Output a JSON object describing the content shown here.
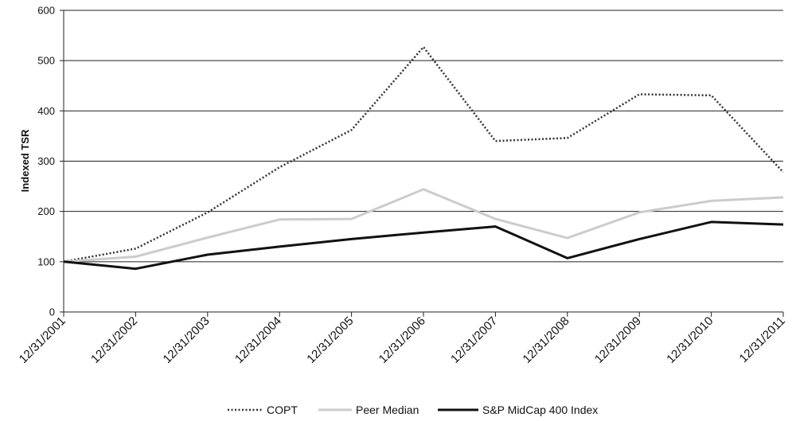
{
  "chart_data": {
    "type": "line",
    "ylabel": "Indexed TSR",
    "xlabel": "",
    "ylim": [
      0,
      600
    ],
    "yticks": [
      0,
      100,
      200,
      300,
      400,
      500,
      600
    ],
    "grid": "horizontal",
    "legend_position": "bottom",
    "categories": [
      "12/31/2001",
      "12/31/2002",
      "12/31/2003",
      "12/31/2004",
      "12/31/2005",
      "12/31/2006",
      "12/31/2007",
      "12/31/2008",
      "12/31/2009",
      "12/31/2010",
      "12/31/2011"
    ],
    "series": [
      {
        "name": "COPT",
        "style": "dotted",
        "color": "#333333",
        "values": [
          100,
          126,
          198,
          288,
          362,
          527,
          340,
          346,
          433,
          431,
          278
        ]
      },
      {
        "name": "Peer Median",
        "style": "solid",
        "color": "#cccccc",
        "values": [
          100,
          110,
          148,
          184,
          185,
          244,
          185,
          147,
          198,
          221,
          228
        ]
      },
      {
        "name": "S&P MidCap 400 Index",
        "style": "solid",
        "color": "#111111",
        "values": [
          100,
          86,
          114,
          130,
          145,
          158,
          170,
          107,
          145,
          179,
          174
        ]
      }
    ]
  }
}
